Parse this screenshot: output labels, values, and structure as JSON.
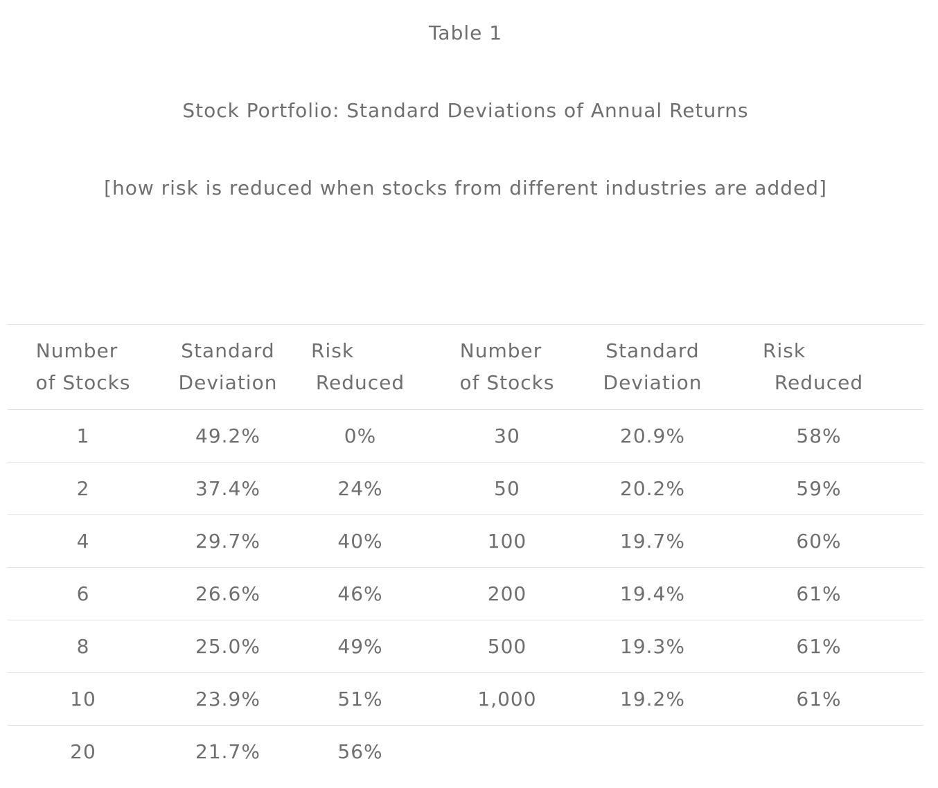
{
  "table_label": "Table 1",
  "title": "Stock Portfolio: Standard Deviations of Annual Returns",
  "subtitle": "[how risk is reduced when stocks from different industries are added]",
  "headers": [
    {
      "line1": "Number",
      "line2": "of Stocks"
    },
    {
      "line1": "Standard",
      "line2": "Deviation"
    },
    {
      "line1": "Risk",
      "line2": "Reduced"
    },
    {
      "line1": "Number",
      "line2": "of Stocks"
    },
    {
      "line1": "Standard",
      "line2": "Deviation"
    },
    {
      "line1": "Risk",
      "line2": "Reduced"
    }
  ],
  "rows": [
    [
      "1",
      "49.2%",
      "0%",
      "30",
      "20.9%",
      "58%"
    ],
    [
      "2",
      "37.4%",
      "24%",
      "50",
      "20.2%",
      "59%"
    ],
    [
      "4",
      "29.7%",
      "40%",
      "100",
      "19.7%",
      "60%"
    ],
    [
      "6",
      "26.6%",
      "46%",
      "200",
      "19.4%",
      "61%"
    ],
    [
      "8",
      "25.0%",
      "49%",
      "500",
      "19.3%",
      "61%"
    ],
    [
      "10",
      "23.9%",
      "51%",
      "1,000",
      "19.2%",
      "61%"
    ],
    [
      "20",
      "21.7%",
      "56%",
      "",
      "",
      ""
    ]
  ]
}
